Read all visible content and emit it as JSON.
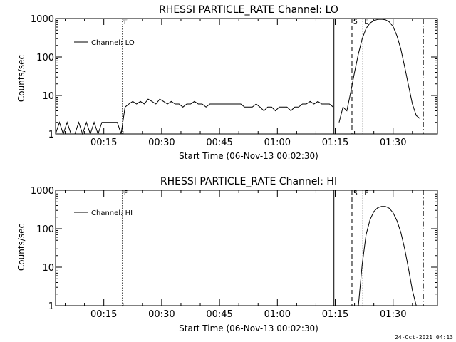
{
  "footer": {
    "timestamp": "24-Oct-2021 04:13"
  },
  "chart_data": [
    {
      "type": "line",
      "title": "RHESSI PARTICLE_RATE Channel: LO",
      "xlabel": "Start Time (06-Nov-13 00:02:30)",
      "ylabel": "Counts/sec",
      "yscale": "log",
      "ylim": [
        1,
        1000
      ],
      "xlim_minutes": [
        0,
        99
      ],
      "x_ticks": [
        "00:15",
        "00:30",
        "00:45",
        "01:00",
        "01:15",
        "01:30"
      ],
      "y_ticks": [
        "1",
        "10",
        "100",
        "1000"
      ],
      "legend": {
        "position": "top-left",
        "label": "Channel: LO"
      },
      "markers": [
        {
          "time": "00:19:50",
          "style": "dotted",
          "label": "F"
        },
        {
          "time": "01:14:40",
          "style": "solid",
          "label": ""
        },
        {
          "time": "01:19:20",
          "style": "dashed",
          "label": "S"
        },
        {
          "time": "01:22:10",
          "style": "dotted",
          "label": "E"
        },
        {
          "time": "01:37:50",
          "style": "dashdot",
          "label": ""
        }
      ],
      "series": [
        {
          "name": "Channel: LO",
          "segments": [
            {
              "x": [
                "00:02:30",
                "00:03:30",
                "00:04:30",
                "00:05:30",
                "00:06:30",
                "00:07:30",
                "00:08:30",
                "00:09:30",
                "00:10:30",
                "00:11:30",
                "00:12:30",
                "00:13:30",
                "00:14:30",
                "00:15:30",
                "00:16:30",
                "00:17:30",
                "00:18:30",
                "00:19:30",
                "00:20:30",
                "00:21:30",
                "00:22:30",
                "00:23:30",
                "00:24:30",
                "00:25:30",
                "00:26:30",
                "00:27:30",
                "00:28:30",
                "00:29:30",
                "00:30:30",
                "00:31:30",
                "00:32:30",
                "00:33:30",
                "00:34:30",
                "00:35:30",
                "00:36:30",
                "00:37:30",
                "00:38:30",
                "00:39:30",
                "00:40:30",
                "00:41:30",
                "00:42:30",
                "00:43:30",
                "00:44:30",
                "00:45:30",
                "00:46:30",
                "00:47:30",
                "00:48:30",
                "00:49:30",
                "00:50:30",
                "00:51:30",
                "00:52:30",
                "00:53:30",
                "00:54:30",
                "00:55:30",
                "00:56:30",
                "00:57:30",
                "00:58:30",
                "00:59:30",
                "01:00:30",
                "01:01:30",
                "01:02:30",
                "01:03:30",
                "01:04:30",
                "01:05:30",
                "01:06:30",
                "01:07:30",
                "01:08:30",
                "01:09:30",
                "01:10:30",
                "01:11:30",
                "01:12:30",
                "01:13:30",
                "01:14:30"
              ],
              "y": [
                1,
                2,
                1,
                2,
                1,
                1,
                2,
                1,
                2,
                1,
                2,
                1,
                2,
                2,
                2,
                2,
                2,
                1,
                5,
                6,
                7,
                6,
                7,
                6,
                8,
                7,
                6,
                8,
                7,
                6,
                7,
                6,
                6,
                5,
                6,
                6,
                7,
                6,
                6,
                5,
                6,
                6,
                6,
                6,
                6,
                6,
                6,
                6,
                6,
                5,
                5,
                5,
                6,
                5,
                4,
                5,
                5,
                4,
                5,
                5,
                5,
                4,
                5,
                5,
                6,
                6,
                7,
                6,
                7,
                6,
                6,
                6,
                5
              ]
            },
            {
              "x": [
                "01:16:00",
                "01:17:00",
                "01:18:00",
                "01:19:00",
                "01:20:00",
                "01:21:00",
                "01:22:00",
                "01:23:00",
                "01:24:00",
                "01:25:00",
                "01:26:00",
                "01:27:00",
                "01:28:00",
                "01:29:00",
                "01:30:00",
                "01:31:00",
                "01:32:00",
                "01:33:00",
                "01:34:00",
                "01:35:00",
                "01:36:00",
                "01:37:00"
              ],
              "y": [
                2,
                5,
                4,
                12,
                40,
                120,
                300,
                550,
                760,
                880,
                950,
                960,
                930,
                820,
                620,
                350,
                160,
                55,
                18,
                6,
                3,
                2.5
              ]
            }
          ]
        }
      ]
    },
    {
      "type": "line",
      "title": "RHESSI PARTICLE_RATE Channel: HI",
      "xlabel": "Start Time (06-Nov-13 00:02:30)",
      "ylabel": "Counts/sec",
      "yscale": "log",
      "ylim": [
        1,
        1000
      ],
      "xlim_minutes": [
        0,
        99
      ],
      "x_ticks": [
        "00:15",
        "00:30",
        "00:45",
        "01:00",
        "01:15",
        "01:30"
      ],
      "y_ticks": [
        "1",
        "10",
        "100",
        "1000"
      ],
      "legend": {
        "position": "top-left",
        "label": "Channel: HI"
      },
      "markers": [
        {
          "time": "00:19:50",
          "style": "dotted",
          "label": "F"
        },
        {
          "time": "01:14:40",
          "style": "solid",
          "label": ""
        },
        {
          "time": "01:19:20",
          "style": "dashed",
          "label": "S"
        },
        {
          "time": "01:22:10",
          "style": "dotted",
          "label": "E"
        },
        {
          "time": "01:37:50",
          "style": "dashdot",
          "label": ""
        }
      ],
      "series": [
        {
          "name": "Channel: HI",
          "segments": [
            {
              "x": [
                "01:21:00",
                "01:22:00",
                "01:23:00",
                "01:24:00",
                "01:25:00",
                "01:26:00",
                "01:27:00",
                "01:28:00",
                "01:29:00",
                "01:30:00",
                "01:31:00",
                "01:32:00",
                "01:33:00",
                "01:34:00",
                "01:35:00",
                "01:36:00"
              ],
              "y": [
                1,
                12,
                70,
                170,
                280,
                350,
                380,
                380,
                340,
                260,
                160,
                80,
                30,
                9,
                2.5,
                1
              ]
            }
          ]
        }
      ]
    }
  ]
}
